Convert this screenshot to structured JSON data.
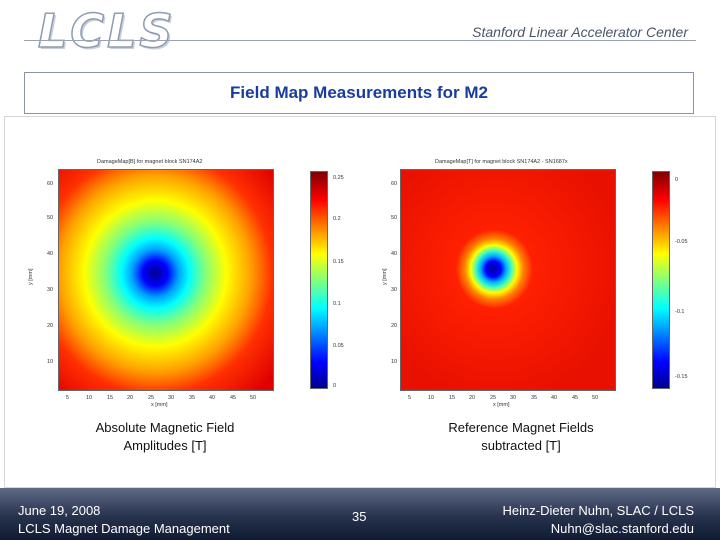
{
  "header": {
    "logo_text": "LCLS",
    "org_name": "Stanford Linear Accelerator Center"
  },
  "slide": {
    "title": "Field Map Measurements for M2"
  },
  "left_plot": {
    "title": "DamageMap[B] for magnet block SN174A2",
    "ylabel": "y [mm]",
    "xlabel": "x [mm]",
    "x_ticks": [
      "5",
      "10",
      "15",
      "20",
      "25",
      "30",
      "35",
      "40",
      "45",
      "50"
    ],
    "y_ticks": [
      "60",
      "50",
      "40",
      "30",
      "20",
      "10"
    ],
    "colorbar_ticks": [
      "0.25",
      "0.2",
      "0.15",
      "0.1",
      "0.05",
      "0"
    ],
    "caption_line1": "Absolute Magnetic Field",
    "caption_line2": "Amplitudes [T]"
  },
  "right_plot": {
    "title": "DamageMap[T] for magnet block SN174A2 - SN1687x",
    "ylabel": "y [mm]",
    "xlabel": "x [mm]",
    "x_ticks": [
      "5",
      "10",
      "15",
      "20",
      "25",
      "30",
      "35",
      "40",
      "45",
      "50"
    ],
    "y_ticks": [
      "60",
      "50",
      "40",
      "30",
      "20",
      "10"
    ],
    "colorbar_ticks": [
      "0",
      "-0.05",
      "-0.1",
      "-0.15"
    ],
    "caption_line1": "Reference Magnet Fields",
    "caption_line2": "subtracted [T]"
  },
  "footer": {
    "date": "June 19, 2008",
    "subtitle": "LCLS Magnet Damage Management",
    "page_number": "35",
    "author": "Heinz-Dieter Nuhn, SLAC / LCLS",
    "email": "Nuhn@slac.stanford.edu"
  },
  "colors": {
    "title": "#1a3c9c",
    "footer_bg": "#27324d"
  }
}
